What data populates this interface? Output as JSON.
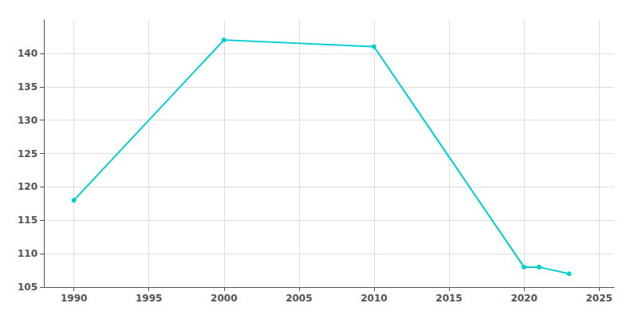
{
  "chart_data": {
    "type": "line",
    "x": [
      1990,
      2000,
      2010,
      2020,
      2021,
      2023
    ],
    "values": [
      118,
      142,
      141,
      108,
      108,
      107
    ],
    "color": "#00CED1",
    "marker": "circle",
    "xlim": [
      1988,
      2026
    ],
    "ylim": [
      105,
      145
    ],
    "xticks": [
      1990,
      1995,
      2000,
      2005,
      2010,
      2015,
      2020,
      2025
    ],
    "yticks": [
      105,
      110,
      115,
      120,
      125,
      130,
      135,
      140
    ],
    "grid": true
  }
}
